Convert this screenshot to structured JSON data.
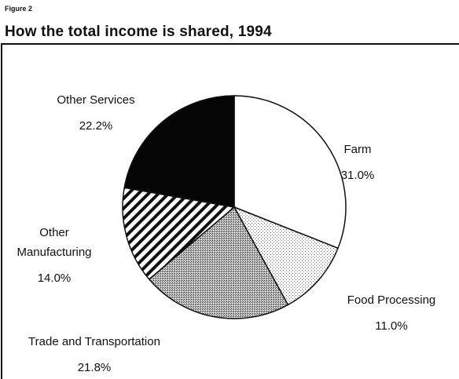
{
  "chart_data": {
    "type": "pie",
    "figure_label": "Figure 2",
    "title": "How the total income is shared, 1994",
    "categories": [
      "Farm",
      "Food Processing",
      "Trade and Transportation",
      "Other Manufacturing",
      "Other Services"
    ],
    "values": [
      31.0,
      11.0,
      21.8,
      14.0,
      22.2
    ],
    "value_labels": [
      "31.0%",
      "11.0%",
      "21.8%",
      "14.0%",
      "22.2%"
    ]
  }
}
